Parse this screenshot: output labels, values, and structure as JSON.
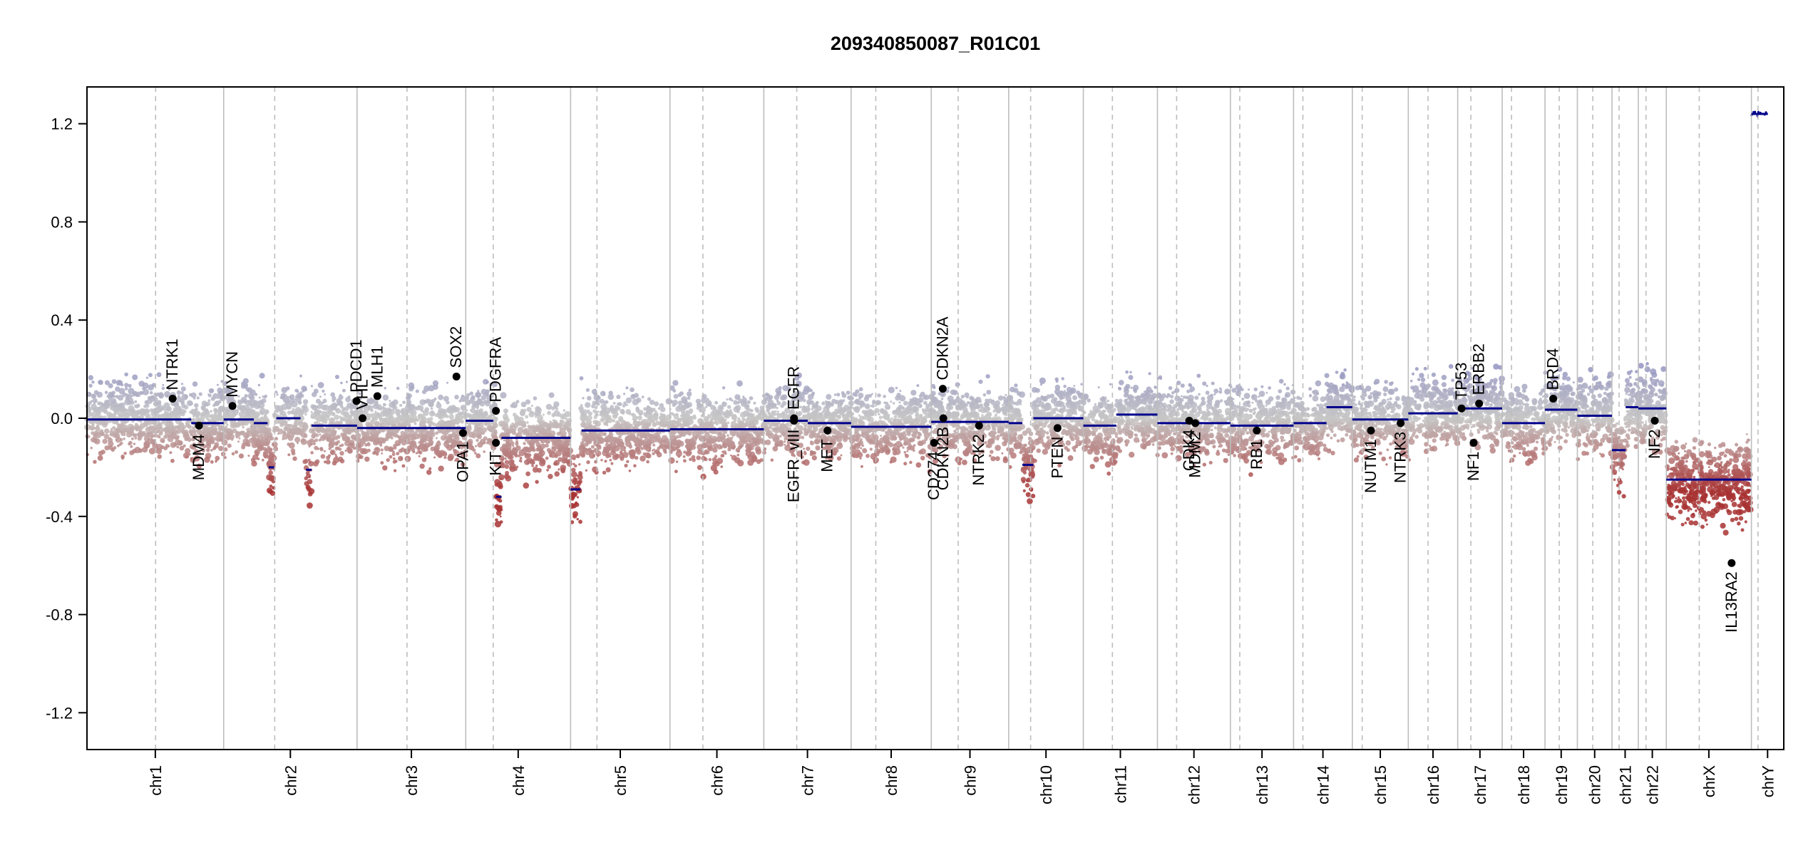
{
  "chart_data": {
    "type": "scatter",
    "title": "209340850087_R01C01",
    "xlabel": "",
    "ylabel": "",
    "ylim": [
      -1.35,
      1.35
    ],
    "y_ticks": [
      -1.2,
      -0.8,
      -0.4,
      0.0,
      0.4,
      0.8,
      1.2
    ],
    "y_tick_labels": [
      "-1.2",
      "-0.8",
      "-0.4",
      "0.0",
      "0.4",
      "0.8",
      "1.2"
    ],
    "grid": false,
    "colors": {
      "segment": "#00008b",
      "gain": "#8b8bc1",
      "neutral": "#c6c6c6",
      "loss": "#a83232",
      "gene_point": "#000000",
      "axis": "#000000",
      "divider": "#bdbdbd"
    },
    "chromosomes": [
      {
        "name": "chr1",
        "length": 249
      },
      {
        "name": "chr2",
        "length": 243
      },
      {
        "name": "chr3",
        "length": 198
      },
      {
        "name": "chr4",
        "length": 191
      },
      {
        "name": "chr5",
        "length": 181
      },
      {
        "name": "chr6",
        "length": 171
      },
      {
        "name": "chr7",
        "length": 159
      },
      {
        "name": "chr8",
        "length": 146
      },
      {
        "name": "chr9",
        "length": 141
      },
      {
        "name": "chr10",
        "length": 136
      },
      {
        "name": "chr11",
        "length": 135
      },
      {
        "name": "chr12",
        "length": 133
      },
      {
        "name": "chr13",
        "length": 115
      },
      {
        "name": "chr14",
        "length": 107
      },
      {
        "name": "chr15",
        "length": 102
      },
      {
        "name": "chr16",
        "length": 90
      },
      {
        "name": "chr17",
        "length": 81
      },
      {
        "name": "chr18",
        "length": 78
      },
      {
        "name": "chr19",
        "length": 59
      },
      {
        "name": "chr20",
        "length": 63
      },
      {
        "name": "chr21",
        "length": 48
      },
      {
        "name": "chr22",
        "length": 51
      },
      {
        "name": "chrX",
        "length": 155
      },
      {
        "name": "chrY",
        "length": 59
      }
    ],
    "centromeres": [
      125,
      93,
      91,
      50,
      48,
      60,
      60,
      45,
      49,
      40,
      53,
      35,
      17,
      17,
      18,
      36,
      24,
      17,
      26,
      28,
      13,
      14,
      60,
      12
    ],
    "segments": [
      {
        "chr": 0,
        "start": 0,
        "end": 190,
        "value": -0.005
      },
      {
        "chr": 0,
        "start": 190,
        "end": 249,
        "value": -0.02
      },
      {
        "chr": 1,
        "start": 0,
        "end": 55,
        "value": -0.005
      },
      {
        "chr": 1,
        "start": 55,
        "end": 80,
        "value": -0.02
      },
      {
        "chr": 1,
        "start": 82,
        "end": 92,
        "value": -0.2
      },
      {
        "chr": 1,
        "start": 96,
        "end": 140,
        "value": 0.0
      },
      {
        "chr": 1,
        "start": 150,
        "end": 160,
        "value": -0.21
      },
      {
        "chr": 1,
        "start": 160,
        "end": 243,
        "value": -0.03
      },
      {
        "chr": 2,
        "start": 0,
        "end": 198,
        "value": -0.04
      },
      {
        "chr": 3,
        "start": 0,
        "end": 50,
        "value": -0.01
      },
      {
        "chr": 3,
        "start": 55,
        "end": 65,
        "value": -0.32
      },
      {
        "chr": 3,
        "start": 65,
        "end": 191,
        "value": -0.08
      },
      {
        "chr": 4,
        "start": 0,
        "end": 18,
        "value": -0.29
      },
      {
        "chr": 4,
        "start": 20,
        "end": 181,
        "value": -0.05
      },
      {
        "chr": 5,
        "start": 0,
        "end": 171,
        "value": -0.045
      },
      {
        "chr": 6,
        "start": 0,
        "end": 80,
        "value": -0.01
      },
      {
        "chr": 6,
        "start": 80,
        "end": 159,
        "value": -0.02
      },
      {
        "chr": 7,
        "start": 0,
        "end": 146,
        "value": -0.035
      },
      {
        "chr": 8,
        "start": 0,
        "end": 141,
        "value": -0.015
      },
      {
        "chr": 9,
        "start": 0,
        "end": 25,
        "value": -0.02
      },
      {
        "chr": 9,
        "start": 25,
        "end": 45,
        "value": -0.19
      },
      {
        "chr": 9,
        "start": 45,
        "end": 136,
        "value": 0.0
      },
      {
        "chr": 10,
        "start": 0,
        "end": 60,
        "value": -0.03
      },
      {
        "chr": 10,
        "start": 60,
        "end": 135,
        "value": 0.015
      },
      {
        "chr": 11,
        "start": 0,
        "end": 133,
        "value": -0.02
      },
      {
        "chr": 12,
        "start": 0,
        "end": 115,
        "value": -0.03
      },
      {
        "chr": 13,
        "start": 0,
        "end": 60,
        "value": -0.02
      },
      {
        "chr": 13,
        "start": 60,
        "end": 107,
        "value": 0.045
      },
      {
        "chr": 14,
        "start": 0,
        "end": 102,
        "value": -0.005
      },
      {
        "chr": 15,
        "start": 0,
        "end": 90,
        "value": 0.02
      },
      {
        "chr": 16,
        "start": 0,
        "end": 81,
        "value": 0.04
      },
      {
        "chr": 17,
        "start": 0,
        "end": 78,
        "value": -0.02
      },
      {
        "chr": 18,
        "start": 0,
        "end": 59,
        "value": 0.035
      },
      {
        "chr": 19,
        "start": 0,
        "end": 63,
        "value": 0.01
      },
      {
        "chr": 20,
        "start": 0,
        "end": 25,
        "value": -0.13
      },
      {
        "chr": 20,
        "start": 25,
        "end": 48,
        "value": 0.045
      },
      {
        "chr": 21,
        "start": 0,
        "end": 51,
        "value": 0.04
      },
      {
        "chr": 22,
        "start": 0,
        "end": 155,
        "value": -0.25
      },
      {
        "chr": 23,
        "start": 0,
        "end": 30,
        "value": 1.24
      }
    ],
    "genes": [
      {
        "name": "NTRK1",
        "chr": 0,
        "pos": 156,
        "value": 0.08,
        "side": "up"
      },
      {
        "name": "MDM4",
        "chr": 0,
        "pos": 204,
        "value": -0.03,
        "side": "down"
      },
      {
        "name": "MYCN",
        "chr": 1,
        "pos": 16,
        "value": 0.05,
        "side": "up"
      },
      {
        "name": "PDCD1",
        "chr": 1,
        "pos": 242,
        "value": 0.07,
        "side": "up"
      },
      {
        "name": "VHL",
        "chr": 2,
        "pos": 10,
        "value": 0.0,
        "side": "up"
      },
      {
        "name": "MLH1",
        "chr": 2,
        "pos": 37,
        "value": 0.09,
        "side": "up"
      },
      {
        "name": "SOX2",
        "chr": 2,
        "pos": 181,
        "value": 0.17,
        "side": "up"
      },
      {
        "name": "OPA1",
        "chr": 2,
        "pos": 193,
        "value": -0.06,
        "side": "down"
      },
      {
        "name": "PDGFRA",
        "chr": 3,
        "pos": 55,
        "value": 0.03,
        "side": "up"
      },
      {
        "name": "KIT",
        "chr": 3,
        "pos": 55,
        "value": -0.1,
        "side": "down"
      },
      {
        "name": "EGFR",
        "chr": 6,
        "pos": 55,
        "value": 0.0,
        "side": "up"
      },
      {
        "name": "EGFR_vIII",
        "chr": 6,
        "pos": 55,
        "value": -0.01,
        "side": "down"
      },
      {
        "name": "MET",
        "chr": 6,
        "pos": 116,
        "value": -0.05,
        "side": "down"
      },
      {
        "name": "CDKN2A",
        "chr": 8,
        "pos": 21,
        "value": 0.12,
        "side": "up"
      },
      {
        "name": "CDKN2B",
        "chr": 8,
        "pos": 22,
        "value": 0.0,
        "side": "down"
      },
      {
        "name": "CD274",
        "chr": 8,
        "pos": 5,
        "value": -0.1,
        "side": "down"
      },
      {
        "name": "NTRK2",
        "chr": 8,
        "pos": 87,
        "value": -0.03,
        "side": "down"
      },
      {
        "name": "PTEN",
        "chr": 9,
        "pos": 89,
        "value": -0.04,
        "side": "down"
      },
      {
        "name": "CDK4",
        "chr": 11,
        "pos": 58,
        "value": -0.01,
        "side": "down"
      },
      {
        "name": "MDM2",
        "chr": 11,
        "pos": 69,
        "value": -0.02,
        "side": "down"
      },
      {
        "name": "RB1",
        "chr": 12,
        "pos": 48,
        "value": -0.05,
        "side": "down"
      },
      {
        "name": "NUTM1",
        "chr": 14,
        "pos": 34,
        "value": -0.05,
        "side": "down"
      },
      {
        "name": "NTRK3",
        "chr": 14,
        "pos": 88,
        "value": -0.02,
        "side": "down"
      },
      {
        "name": "TP53",
        "chr": 16,
        "pos": 7,
        "value": 0.04,
        "side": "up"
      },
      {
        "name": "ERBB2",
        "chr": 16,
        "pos": 39,
        "value": 0.06,
        "side": "up"
      },
      {
        "name": "NF1",
        "chr": 16,
        "pos": 29,
        "value": -0.1,
        "side": "down"
      },
      {
        "name": "BRD4",
        "chr": 18,
        "pos": 15,
        "value": 0.08,
        "side": "up"
      },
      {
        "name": "NF2",
        "chr": 21,
        "pos": 30,
        "value": -0.01,
        "side": "down"
      },
      {
        "name": "IL13RA2",
        "chr": 22,
        "pos": 119,
        "value": -0.59,
        "side": "down"
      }
    ]
  }
}
